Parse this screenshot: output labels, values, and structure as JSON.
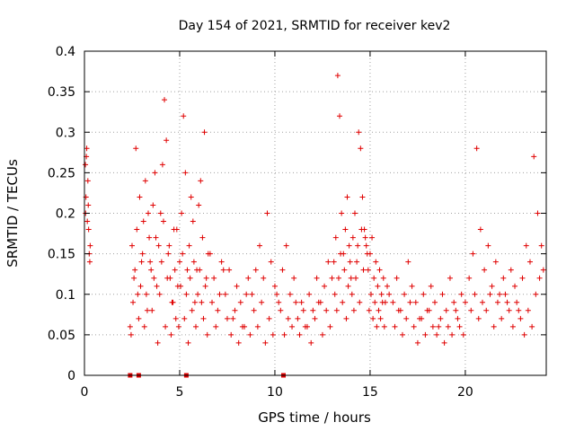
{
  "chart_data": {
    "type": "scatter",
    "title": "Day 154 of 2021, SRMTID for receiver kev2",
    "xlabel": "GPS time / hours",
    "ylabel": "SRMTID / TECUs",
    "xlim": [
      0,
      24.25
    ],
    "ylim": [
      0,
      0.4
    ],
    "xticks": [
      0,
      5,
      10,
      15,
      20
    ],
    "xtick_labels": [
      "0",
      "5",
      "10",
      "15",
      "20"
    ],
    "yticks": [
      0,
      0.05,
      0.1,
      0.15,
      0.2,
      0.25,
      0.3,
      0.35,
      0.4
    ],
    "ytick_labels": [
      "0",
      "0.05",
      "0.1",
      "0.15",
      "0.2",
      "0.25",
      "0.3",
      "0.35",
      "0.4"
    ],
    "grid": true,
    "marker": "+",
    "color": "#e00000",
    "series": [
      {
        "name": "SRMTID",
        "x": [
          0.05,
          0.1,
          0.15,
          0.2,
          0.25,
          0.12,
          0.08,
          0.3,
          0.18,
          0.22,
          0.06,
          0.28,
          2.4,
          2.5,
          2.6,
          2.7,
          2.8,
          2.9,
          3.0,
          3.1,
          3.2,
          3.3,
          3.4,
          3.5,
          3.6,
          3.7,
          3.8,
          3.9,
          4.0,
          4.1,
          4.2,
          4.3,
          4.4,
          4.5,
          4.6,
          4.7,
          4.8,
          4.9,
          5.0,
          5.1,
          5.2,
          5.3,
          5.4,
          5.5,
          5.6,
          5.7,
          5.8,
          5.9,
          6.0,
          6.1,
          6.2,
          6.3,
          6.4,
          6.5,
          2.45,
          2.55,
          2.65,
          2.75,
          2.85,
          2.95,
          3.05,
          3.15,
          3.25,
          3.35,
          3.45,
          3.55,
          3.65,
          3.75,
          3.85,
          3.95,
          4.05,
          4.15,
          4.25,
          4.35,
          4.45,
          4.55,
          4.65,
          4.75,
          4.85,
          4.95,
          5.05,
          5.15,
          5.25,
          5.35,
          5.45,
          5.55,
          5.65,
          5.75,
          5.85,
          5.95,
          6.05,
          6.15,
          6.25,
          6.35,
          6.45,
          6.6,
          6.8,
          7.0,
          7.2,
          7.4,
          7.6,
          7.8,
          8.0,
          8.2,
          8.4,
          8.6,
          8.8,
          9.0,
          9.2,
          9.4,
          9.6,
          9.8,
          10.0,
          10.2,
          10.4,
          10.6,
          10.8,
          11.0,
          11.2,
          11.4,
          11.6,
          11.8,
          12.0,
          12.2,
          12.4,
          12.6,
          12.8,
          13.0,
          6.7,
          6.9,
          7.1,
          7.3,
          7.5,
          7.7,
          7.9,
          8.1,
          8.3,
          8.5,
          8.7,
          8.9,
          9.1,
          9.3,
          9.5,
          9.7,
          9.9,
          10.1,
          10.3,
          10.5,
          10.7,
          10.9,
          11.1,
          11.3,
          11.5,
          11.7,
          11.9,
          12.1,
          12.3,
          12.5,
          12.7,
          12.9,
          13.1,
          13.2,
          13.3,
          13.4,
          13.5,
          13.6,
          13.7,
          13.8,
          13.9,
          14.0,
          14.1,
          14.2,
          14.3,
          14.4,
          14.5,
          14.6,
          14.7,
          14.8,
          14.9,
          15.0,
          15.1,
          15.2,
          15.3,
          15.4,
          15.5,
          15.6,
          15.7,
          15.8,
          15.9,
          16.0,
          13.15,
          13.25,
          13.35,
          13.45,
          13.55,
          13.65,
          13.75,
          13.85,
          13.95,
          14.05,
          14.15,
          14.25,
          14.35,
          14.45,
          14.55,
          14.65,
          14.75,
          14.85,
          14.95,
          15.05,
          15.15,
          15.25,
          15.35,
          15.45,
          15.55,
          15.65,
          15.75,
          16.2,
          16.4,
          16.6,
          16.8,
          17.0,
          17.2,
          17.4,
          17.6,
          17.8,
          18.0,
          18.2,
          18.4,
          18.6,
          18.8,
          19.0,
          19.2,
          19.4,
          19.6,
          19.8,
          20.0,
          16.3,
          16.5,
          16.7,
          16.9,
          17.1,
          17.3,
          17.5,
          17.7,
          17.9,
          18.1,
          18.3,
          18.5,
          18.7,
          18.9,
          19.1,
          19.3,
          19.5,
          19.7,
          19.9,
          20.2,
          20.4,
          20.6,
          20.8,
          21.0,
          21.2,
          21.4,
          21.6,
          21.8,
          22.0,
          22.2,
          22.4,
          22.6,
          22.8,
          23.0,
          23.2,
          23.4,
          23.6,
          23.8,
          24.0,
          24.1,
          20.3,
          20.5,
          20.7,
          20.9,
          21.1,
          21.3,
          21.5,
          21.7,
          21.9,
          22.1,
          22.3,
          22.5,
          22.7,
          22.9,
          23.1,
          23.3,
          23.5,
          23.7,
          23.9
        ],
        "y": [
          0.26,
          0.27,
          0.19,
          0.21,
          0.15,
          0.28,
          0.22,
          0.16,
          0.24,
          0.18,
          0.2,
          0.14,
          0.06,
          0.16,
          0.12,
          0.28,
          0.1,
          0.22,
          0.14,
          0.19,
          0.24,
          0.08,
          0.17,
          0.13,
          0.21,
          0.25,
          0.11,
          0.16,
          0.2,
          0.26,
          0.34,
          0.29,
          0.15,
          0.12,
          0.09,
          0.18,
          0.07,
          0.11,
          0.14,
          0.2,
          0.32,
          0.25,
          0.13,
          0.16,
          0.22,
          0.19,
          0.09,
          0.13,
          0.21,
          0.24,
          0.17,
          0.3,
          0.12,
          0.15,
          0.05,
          0.09,
          0.13,
          0.18,
          0.07,
          0.11,
          0.15,
          0.06,
          0.1,
          0.2,
          0.14,
          0.08,
          0.12,
          0.17,
          0.04,
          0.1,
          0.14,
          0.19,
          0.06,
          0.12,
          0.16,
          0.05,
          0.09,
          0.13,
          0.18,
          0.06,
          0.11,
          0.15,
          0.07,
          0.1,
          0.04,
          0.12,
          0.08,
          0.14,
          0.06,
          0.1,
          0.13,
          0.09,
          0.07,
          0.11,
          0.05,
          0.15,
          0.12,
          0.08,
          0.14,
          0.1,
          0.13,
          0.07,
          0.11,
          0.09,
          0.06,
          0.12,
          0.1,
          0.13,
          0.16,
          0.12,
          0.2,
          0.14,
          0.11,
          0.09,
          0.13,
          0.16,
          0.1,
          0.12,
          0.07,
          0.09,
          0.06,
          0.1,
          0.08,
          0.12,
          0.09,
          0.11,
          0.14,
          0.12,
          0.09,
          0.06,
          0.1,
          0.13,
          0.07,
          0.05,
          0.08,
          0.04,
          0.06,
          0.1,
          0.05,
          0.08,
          0.06,
          0.09,
          0.04,
          0.07,
          0.05,
          0.1,
          0.08,
          0.05,
          0.07,
          0.06,
          0.09,
          0.05,
          0.08,
          0.06,
          0.04,
          0.07,
          0.09,
          0.05,
          0.08,
          0.06,
          0.14,
          0.17,
          0.37,
          0.32,
          0.2,
          0.15,
          0.18,
          0.22,
          0.16,
          0.12,
          0.17,
          0.2,
          0.14,
          0.3,
          0.28,
          0.22,
          0.18,
          0.16,
          0.13,
          0.15,
          0.17,
          0.12,
          0.14,
          0.11,
          0.13,
          0.1,
          0.12,
          0.09,
          0.11,
          0.1,
          0.1,
          0.08,
          0.12,
          0.15,
          0.09,
          0.13,
          0.07,
          0.11,
          0.14,
          0.1,
          0.08,
          0.12,
          0.16,
          0.09,
          0.18,
          0.13,
          0.17,
          0.15,
          0.08,
          0.1,
          0.07,
          0.09,
          0.06,
          0.08,
          0.07,
          0.09,
          0.06,
          0.09,
          0.12,
          0.08,
          0.1,
          0.14,
          0.11,
          0.09,
          0.07,
          0.1,
          0.08,
          0.11,
          0.09,
          0.06,
          0.1,
          0.08,
          0.12,
          0.09,
          0.07,
          0.1,
          0.09,
          0.06,
          0.08,
          0.05,
          0.07,
          0.09,
          0.06,
          0.04,
          0.07,
          0.05,
          0.08,
          0.06,
          0.05,
          0.07,
          0.04,
          0.06,
          0.05,
          0.08,
          0.06,
          0.05,
          0.12,
          0.15,
          0.28,
          0.18,
          0.13,
          0.16,
          0.11,
          0.14,
          0.1,
          0.12,
          0.09,
          0.13,
          0.11,
          0.08,
          0.12,
          0.16,
          0.14,
          0.27,
          0.2,
          0.16,
          0.13,
          0.08,
          0.1,
          0.07,
          0.09,
          0.08,
          0.1,
          0.06,
          0.09,
          0.07,
          0.1,
          0.08,
          0.06,
          0.09,
          0.07,
          0.05,
          0.08,
          0.06,
          0.1,
          0.12
        ]
      }
    ],
    "gap_markers_x": [
      2.4,
      2.85,
      5.35,
      10.45
    ]
  }
}
